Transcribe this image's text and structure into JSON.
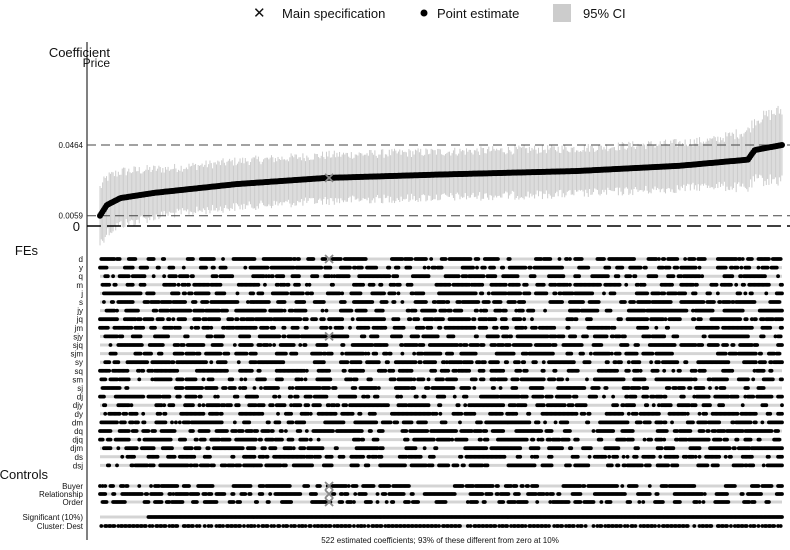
{
  "legend": {
    "main_spec": "Main specification",
    "point_estimate": "Point estimate",
    "ci": "95% CI",
    "placement": "top"
  },
  "colors": {
    "point": "#000000",
    "ci": "#cccccc",
    "main_spec": "#888888",
    "row_line": "#d4d4d4",
    "dashed": "#444444"
  },
  "chart_data": {
    "type": "scatter",
    "title": "Coefficient",
    "subtitle": "Price",
    "ylabel": "Coefficient",
    "n": 522,
    "main_spec_rank": 175,
    "min_estimate": 0.0059,
    "main_estimate": 0.0275,
    "max_estimate": 0.0464,
    "ylim": [
      -0.004,
      0.07
    ],
    "yticks": [
      {
        "label": "0.0464",
        "value": 0.0464
      },
      {
        "label": "0.0059",
        "value": 0.0059
      },
      {
        "label": "0",
        "value": 0
      }
    ],
    "ci_halfwidth": {
      "low_end": 0.016,
      "mid": 0.013,
      "high_end": 0.02
    },
    "estimate_curve": [
      {
        "q": 0.0,
        "y": 0.0059
      },
      {
        "q": 0.01,
        "y": 0.012
      },
      {
        "q": 0.03,
        "y": 0.016
      },
      {
        "q": 0.08,
        "y": 0.019
      },
      {
        "q": 0.2,
        "y": 0.024
      },
      {
        "q": 0.33,
        "y": 0.0275
      },
      {
        "q": 0.5,
        "y": 0.0295
      },
      {
        "q": 0.7,
        "y": 0.0315
      },
      {
        "q": 0.85,
        "y": 0.0345
      },
      {
        "q": 0.95,
        "y": 0.038
      },
      {
        "q": 0.96,
        "y": 0.0435
      },
      {
        "q": 1.0,
        "y": 0.0464
      }
    ],
    "fe_section_label": "FEs",
    "fe_rows": [
      "d",
      "y",
      "q",
      "m",
      "j",
      "s",
      "jy",
      "jq",
      "jm",
      "sjy",
      "sjq",
      "sjm",
      "sy",
      "sq",
      "sm",
      "sj",
      "dj",
      "djy",
      "dy",
      "dm",
      "dq",
      "djq",
      "djm",
      "ds",
      "dsj"
    ],
    "controls_section_label": "Controls",
    "control_rows": [
      "Buyer",
      "Relationship",
      "Order"
    ],
    "indicator_rows": [
      "Significant (10%)",
      "Cluster: Dest"
    ],
    "significant_share": 0.93,
    "main_spec_markers": [
      "d",
      "sjy",
      "Buyer",
      "Relationship",
      "Order"
    ]
  },
  "footer": "522 estimated coefficients; 93% of these different from zero at 10%"
}
